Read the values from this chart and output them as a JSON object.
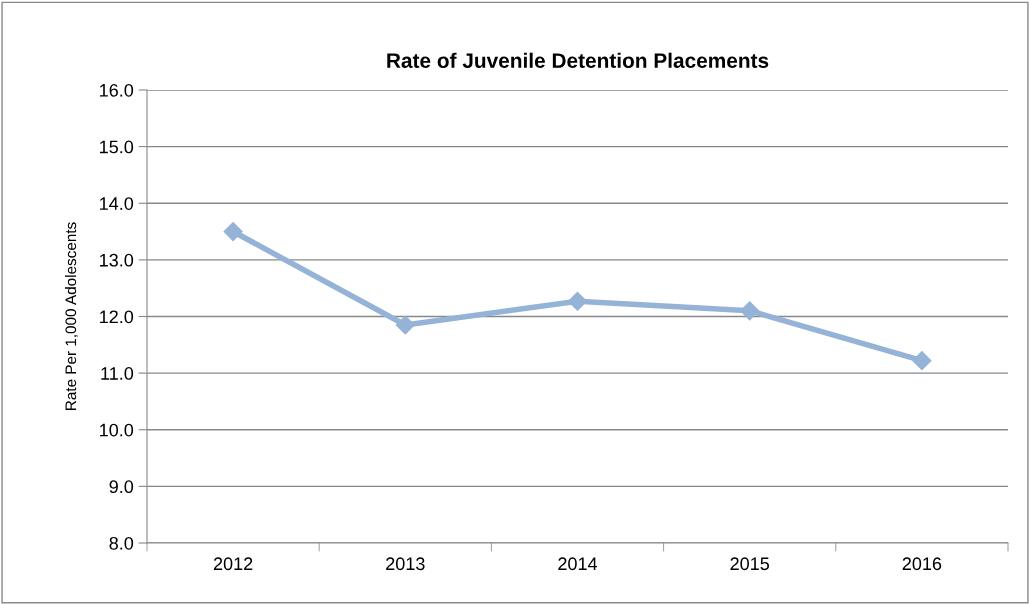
{
  "chart_data": {
    "type": "line",
    "title": "Rate of Juvenile Detention Placements",
    "ylabel": "Rate Per 1,000 Adolescents",
    "categories": [
      "2012",
      "2013",
      "2014",
      "2015",
      "2016"
    ],
    "series": [
      {
        "color": "#95b3d7",
        "values": [
          13.5,
          11.85,
          12.27,
          12.1,
          11.22
        ]
      }
    ],
    "ylim": [
      8.0,
      16.0
    ],
    "yticks": [
      {
        "value": 8,
        "label": "8.0"
      },
      {
        "value": 9,
        "label": "9.0"
      },
      {
        "value": 10,
        "label": "10.0"
      },
      {
        "value": 11,
        "label": "11.0"
      },
      {
        "value": 12,
        "label": "12.0"
      },
      {
        "value": 13,
        "label": "13.0"
      },
      {
        "value": 14,
        "label": "14.0"
      },
      {
        "value": 15,
        "label": "15.0"
      },
      {
        "value": 16,
        "label": "16.0"
      }
    ],
    "grid": "y",
    "marker": "diamond",
    "line_style": "solid",
    "legend": false
  }
}
